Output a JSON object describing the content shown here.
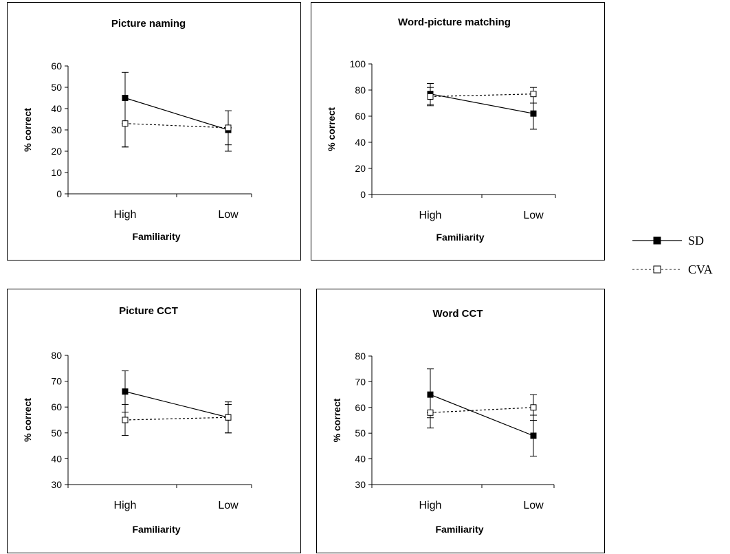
{
  "chart_data": [
    {
      "type": "line",
      "title": "Picture naming",
      "xlabel": "Familiarity",
      "ylabel": "% correct",
      "categories": [
        "High",
        "Low"
      ],
      "ylim": [
        0,
        60
      ],
      "yticks": [
        0,
        10,
        20,
        30,
        40,
        50,
        60
      ],
      "series": [
        {
          "name": "SD",
          "values": [
            45,
            30
          ],
          "error_low": [
            22,
            20
          ],
          "error_high": [
            57,
            39
          ]
        },
        {
          "name": "CVA",
          "values": [
            33,
            31
          ],
          "error_low": [
            22,
            23
          ],
          "error_high": [
            33,
            31
          ]
        }
      ]
    },
    {
      "type": "line",
      "title": "Word-picture matching",
      "xlabel": "Familiarity",
      "ylabel": "% correct",
      "categories": [
        "High",
        "Low"
      ],
      "ylim": [
        0,
        100
      ],
      "yticks": [
        0,
        20,
        40,
        60,
        80,
        100
      ],
      "series": [
        {
          "name": "SD",
          "values": [
            77,
            62
          ],
          "error_low": [
            69,
            50
          ],
          "error_high": [
            85,
            70
          ]
        },
        {
          "name": "CVA",
          "values": [
            75,
            77
          ],
          "error_low": [
            68,
            70
          ],
          "error_high": [
            82,
            82
          ]
        }
      ]
    },
    {
      "type": "line",
      "title": "Picture CCT",
      "xlabel": "Familiarity",
      "ylabel": "% correct",
      "categories": [
        "High",
        "Low"
      ],
      "ylim": [
        30,
        80
      ],
      "yticks": [
        30,
        40,
        50,
        60,
        70,
        80
      ],
      "series": [
        {
          "name": "SD",
          "values": [
            66,
            56
          ],
          "error_low": [
            58,
            50
          ],
          "error_high": [
            74,
            62
          ]
        },
        {
          "name": "CVA",
          "values": [
            55,
            56
          ],
          "error_low": [
            49,
            50
          ],
          "error_high": [
            61,
            61
          ]
        }
      ]
    },
    {
      "type": "line",
      "title": "Word CCT",
      "xlabel": "Familiarity",
      "ylabel": "% correct",
      "categories": [
        "High",
        "Low"
      ],
      "ylim": [
        30,
        80
      ],
      "yticks": [
        30,
        40,
        50,
        60,
        70,
        80
      ],
      "series": [
        {
          "name": "SD",
          "values": [
            65,
            49
          ],
          "error_low": [
            56,
            41
          ],
          "error_high": [
            75,
            57
          ]
        },
        {
          "name": "CVA",
          "values": [
            58,
            60
          ],
          "error_low": [
            52,
            55
          ],
          "error_high": [
            58,
            65
          ]
        }
      ]
    }
  ],
  "legend": [
    {
      "name": "SD",
      "marker": "filled-square",
      "line": "solid"
    },
    {
      "name": "CVA",
      "marker": "open-square",
      "line": "dashed"
    }
  ]
}
